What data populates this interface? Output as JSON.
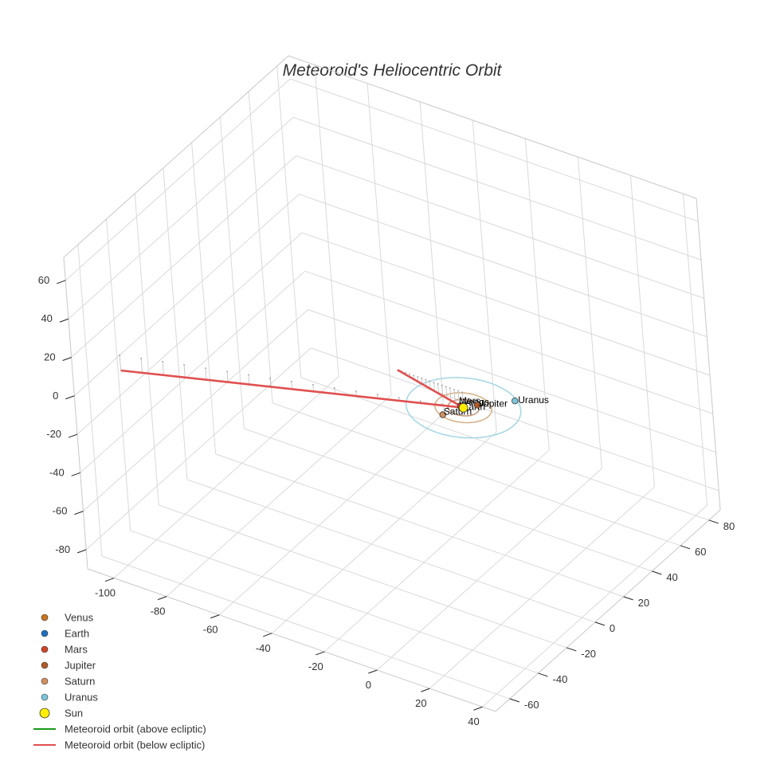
{
  "chart_data": {
    "type": "scatter3d",
    "title": "Meteoroid's Heliocentric Orbit",
    "axes": {
      "x": {
        "ticks": [
          -100,
          -80,
          -60,
          -40,
          -20,
          0,
          20,
          40
        ],
        "range": [
          -110,
          45
        ]
      },
      "y": {
        "ticks": [
          -60,
          -40,
          -20,
          0,
          20,
          40,
          60,
          80
        ],
        "range": [
          -70,
          88
        ]
      },
      "z": {
        "ticks": [
          60,
          40,
          20,
          0,
          -20,
          -40,
          -60,
          -80
        ],
        "range": [
          -90,
          72
        ]
      },
      "grid": true
    },
    "planets": [
      {
        "name": "Venus",
        "color": "#c8761e",
        "x": -0.7,
        "y": 0.2,
        "z": 0.0
      },
      {
        "name": "Earth",
        "color": "#1f6fbf",
        "x": -1.0,
        "y": 0.0,
        "z": 0.0
      },
      {
        "name": "Mars",
        "color": "#d2432a",
        "x": -1.4,
        "y": 0.6,
        "z": 0.0
      },
      {
        "name": "Jupiter",
        "color": "#b05a2a",
        "x": 3.0,
        "y": 4.2,
        "z": 0.0
      },
      {
        "name": "Saturn",
        "color": "#d09060",
        "x": -3.5,
        "y": -8.0,
        "z": 0.0
      },
      {
        "name": "Uranus",
        "color": "#7cc5d8",
        "x": 12.0,
        "y": 14.0,
        "z": 0.0
      }
    ],
    "sun": {
      "name": "Sun",
      "color": "#ffee00",
      "x": 0,
      "y": 0,
      "z": 0
    },
    "orbits": [
      {
        "planet": "Jupiter",
        "radius": 5.2,
        "color": "#c89a80"
      },
      {
        "planet": "Saturn",
        "radius": 9.5,
        "color": "#d6b48c"
      },
      {
        "planet": "Uranus",
        "radius": 19.2,
        "color": "#a8d8e4"
      }
    ],
    "series": [
      {
        "name": "Meteoroid orbit (above ecliptic)",
        "color": "#1a9a1a",
        "points": []
      },
      {
        "name": "Meteoroid orbit (below ecliptic)",
        "color": "#e05050",
        "points": [
          [
            -100,
            -55,
            8
          ],
          [
            0,
            0,
            0
          ],
          [
            8,
            -55,
            60
          ]
        ]
      }
    ],
    "legend": {
      "placement": "bottom-left",
      "entries": [
        {
          "label": "Venus",
          "kind": "marker",
          "color": "#c8761e"
        },
        {
          "label": "Earth",
          "kind": "marker",
          "color": "#1f6fbf"
        },
        {
          "label": "Mars",
          "kind": "marker",
          "color": "#d2432a"
        },
        {
          "label": "Jupiter",
          "kind": "marker",
          "color": "#b05a2a"
        },
        {
          "label": "Saturn",
          "kind": "marker",
          "color": "#d09060"
        },
        {
          "label": "Uranus",
          "kind": "marker",
          "color": "#7cc5d8"
        },
        {
          "label": "Sun",
          "kind": "sun",
          "color": "#ffee00"
        },
        {
          "label": "Meteoroid orbit (above ecliptic)",
          "kind": "line",
          "color": "#1a9a1a"
        },
        {
          "label": "Meteoroid orbit (below ecliptic)",
          "kind": "line",
          "color": "#e05050"
        }
      ]
    }
  }
}
